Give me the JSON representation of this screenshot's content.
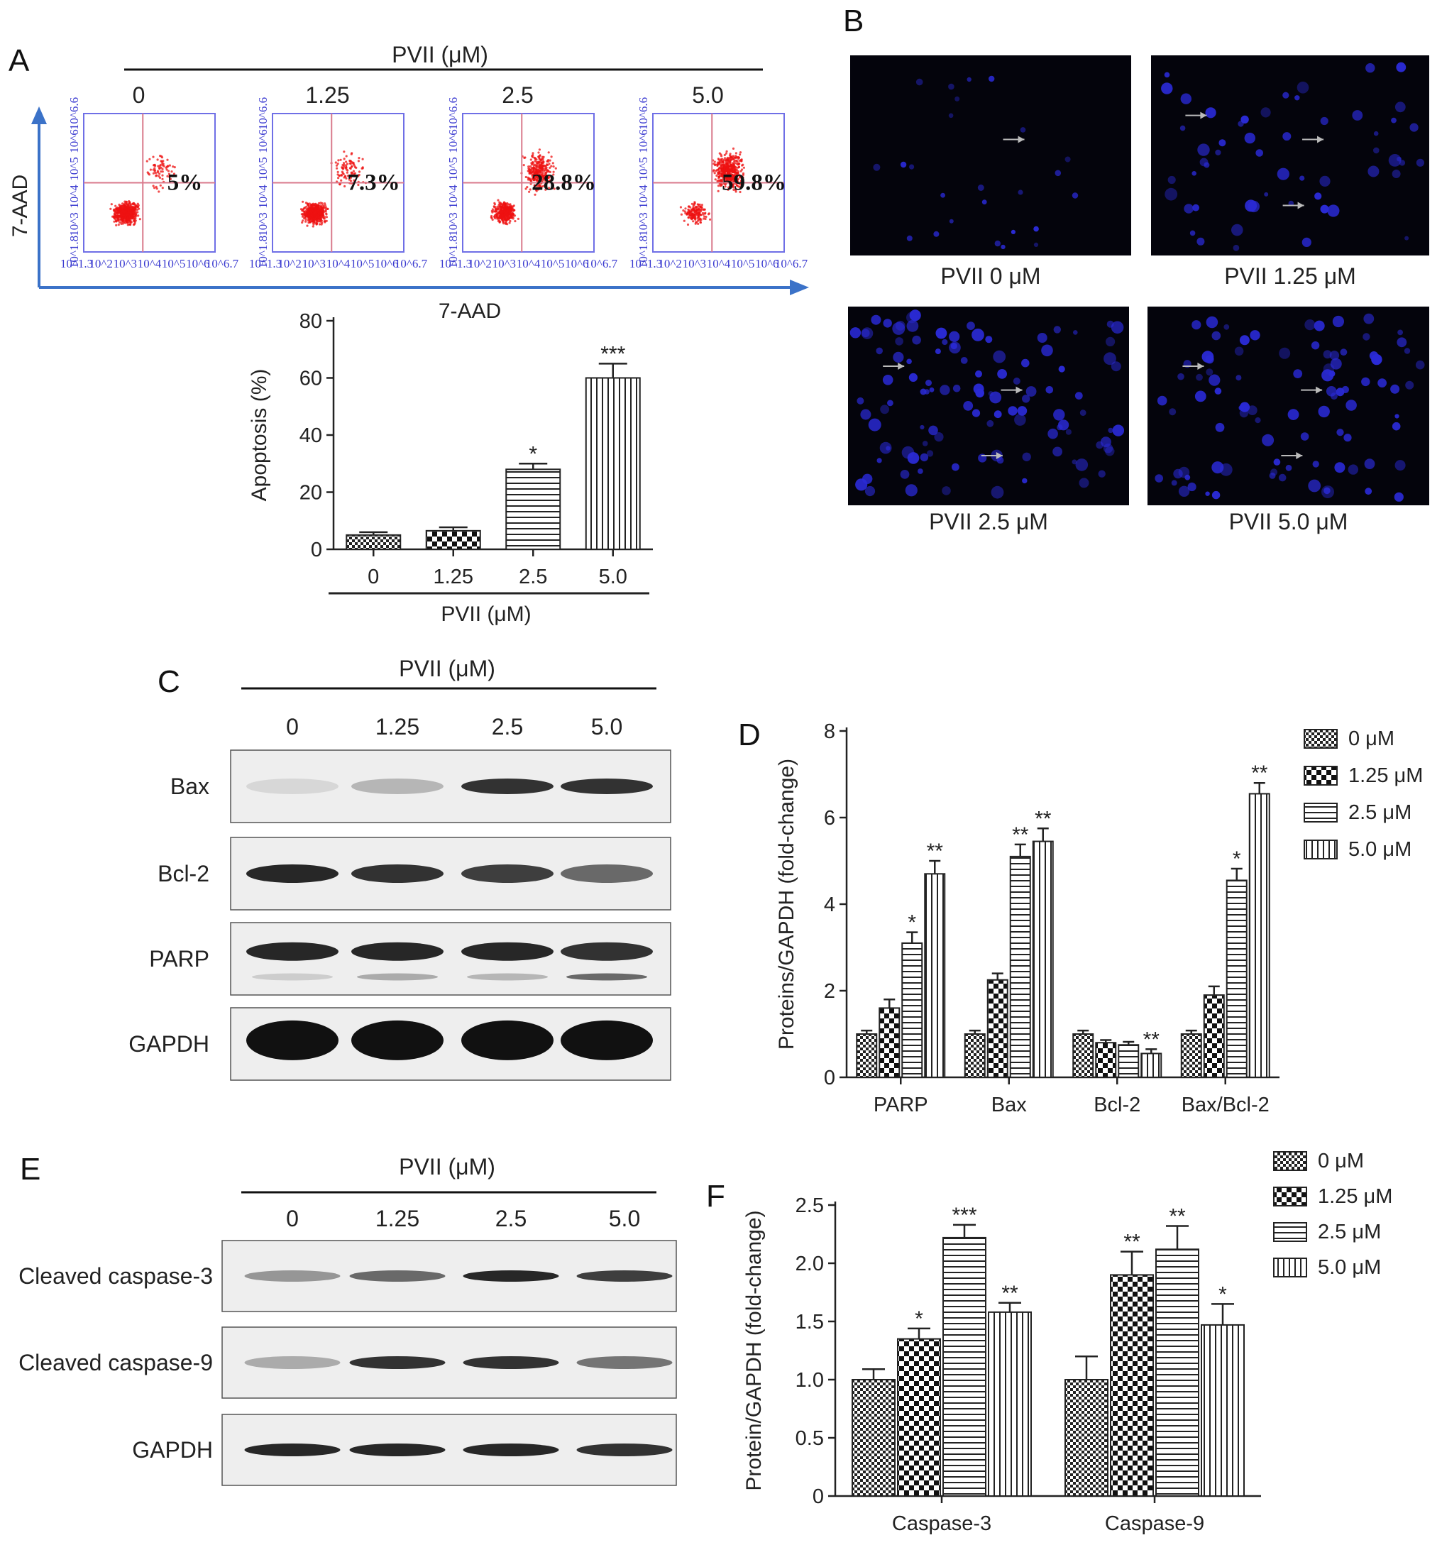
{
  "panel_labels": {
    "A": "A",
    "B": "B",
    "C": "C",
    "D": "D",
    "E": "E",
    "F": "F"
  },
  "panel_a": {
    "header": "PVII (μM)",
    "y_axis_label": "7-AAD",
    "x_axis_label": "7-AAD",
    "conditions": [
      "0",
      "1.25",
      "2.5",
      "5.0"
    ],
    "percentages": [
      "5%",
      "7.3%",
      "28.8%",
      "59.8%"
    ],
    "flow_x_ticks": [
      "10^1.3",
      "10^2",
      "10^3",
      "10^4",
      "10^5",
      "10^6",
      "10^6.7"
    ],
    "flow_y_ticks": [
      "10^1.8",
      "10^3",
      "10^4",
      "10^5",
      "10^6",
      "10^6.6"
    ],
    "colors": {
      "dots": "#ee1111",
      "frame": "#6f6fe6",
      "gate": "#d97a8c",
      "axis_arrow": "#3b72c8"
    }
  },
  "panel_b": {
    "captions": [
      "PVII 0 μM",
      "PVII 1.25 μM",
      "PVII 2.5 μM",
      "PVII 5.0 μM"
    ],
    "colors": {
      "background": "#04040c",
      "nuclei": "#2a2ad6"
    }
  },
  "panel_c": {
    "header": "PVII (μM)",
    "lanes": [
      "0",
      "1.25",
      "2.5",
      "5.0"
    ],
    "rows": [
      "Bax",
      "Bcl-2",
      "PARP",
      "GAPDH"
    ]
  },
  "panel_e": {
    "header": "PVII (μM)",
    "lanes": [
      "0",
      "1.25",
      "2.5",
      "5.0"
    ],
    "rows": [
      "Cleaved caspase-3",
      "Cleaved caspase-9",
      "GAPDH"
    ]
  },
  "chart_data": [
    {
      "id": "A-bar",
      "type": "bar",
      "categories": [
        "0",
        "1.25",
        "2.5",
        "5.0"
      ],
      "values": [
        5,
        6.5,
        28,
        60
      ],
      "errors": [
        1,
        1.2,
        2,
        5
      ],
      "significance": [
        "",
        "",
        "*",
        "***"
      ],
      "patterns": [
        "small-check",
        "large-check",
        "horizontal",
        "vertical"
      ],
      "title": "",
      "xlabel": "PVII (μM)",
      "ylabel": "Apoptosis (%)",
      "ylim": [
        0,
        80
      ],
      "yticks": [
        "0",
        "20",
        "40",
        "60",
        "80"
      ]
    },
    {
      "id": "D",
      "type": "bar",
      "categories": [
        "PARP",
        "Bax",
        "Bcl-2",
        "Bax/Bcl-2"
      ],
      "series": [
        {
          "name": "0 μM",
          "pattern": "small-check",
          "values": [
            1.0,
            1.0,
            1.0,
            1.0
          ],
          "errors": [
            0.08,
            0.08,
            0.08,
            0.08
          ],
          "significance": [
            "",
            "",
            "",
            ""
          ]
        },
        {
          "name": "1.25 μM",
          "pattern": "large-check",
          "values": [
            1.6,
            2.25,
            0.8,
            1.9
          ],
          "errors": [
            0.2,
            0.15,
            0.06,
            0.2
          ],
          "significance": [
            "",
            "",
            "",
            ""
          ]
        },
        {
          "name": "2.5 μM",
          "pattern": "horizontal",
          "values": [
            3.1,
            5.1,
            0.75,
            4.55
          ],
          "errors": [
            0.25,
            0.28,
            0.07,
            0.27
          ],
          "significance": [
            "*",
            "**",
            "",
            "*"
          ]
        },
        {
          "name": "5.0 μM",
          "pattern": "vertical",
          "values": [
            4.7,
            5.45,
            0.55,
            6.55
          ],
          "errors": [
            0.3,
            0.3,
            0.1,
            0.25
          ],
          "significance": [
            "**",
            "**",
            "**",
            "**"
          ]
        }
      ],
      "xlabel": "",
      "ylabel": "Proteins/GAPDH (fold-change)",
      "ylim": [
        0,
        8
      ],
      "yticks": [
        "0",
        "2",
        "4",
        "6",
        "8"
      ],
      "legend": "top-right"
    },
    {
      "id": "F",
      "type": "bar",
      "categories": [
        "Caspase-3",
        "Caspase-9"
      ],
      "series": [
        {
          "name": "0 μM",
          "pattern": "small-check",
          "values": [
            1.0,
            1.0
          ],
          "errors": [
            0.09,
            0.2
          ],
          "significance": [
            "",
            ""
          ]
        },
        {
          "name": "1.25 μM",
          "pattern": "large-check",
          "values": [
            1.35,
            1.9
          ],
          "errors": [
            0.09,
            0.2
          ],
          "significance": [
            "*",
            "**"
          ]
        },
        {
          "name": "2.5 μM",
          "pattern": "horizontal",
          "values": [
            2.22,
            2.12
          ],
          "errors": [
            0.11,
            0.2
          ],
          "significance": [
            "***",
            "**"
          ]
        },
        {
          "name": "5.0 μM",
          "pattern": "vertical",
          "values": [
            1.58,
            1.47
          ],
          "errors": [
            0.08,
            0.18
          ],
          "significance": [
            "**",
            "*"
          ]
        }
      ],
      "xlabel": "",
      "ylabel": "Protein/GAPDH (fold-change)",
      "ylim": [
        0,
        2.5
      ],
      "yticks": [
        "0",
        "0.5",
        "1.0",
        "1.5",
        "2.0",
        "2.5"
      ],
      "legend": "top-right"
    }
  ]
}
